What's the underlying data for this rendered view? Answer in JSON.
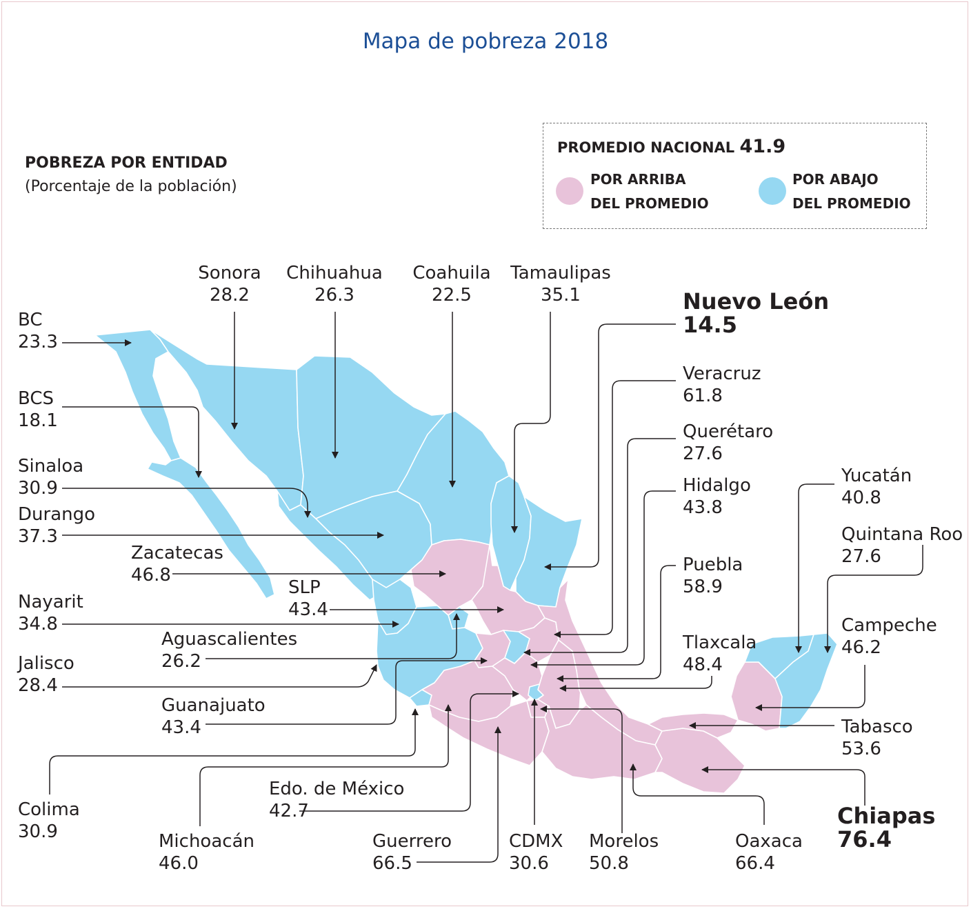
{
  "title": "Mapa de pobreza 2018",
  "subtitle": "POBREZA POR ENTIDAD",
  "note": "(Porcentaje de la población)",
  "legend": {
    "label": "PROMEDIO NACIONAL",
    "value": "41.9",
    "above_line1": "POR ARRIBA",
    "above_line2": "DEL PROMEDIO",
    "below_line1": "POR ABAJO",
    "below_line2": "DEL PROMEDIO"
  },
  "colors": {
    "above": "#e8c3da",
    "below": "#96d8f2",
    "title": "#1c4f96",
    "border": "#ffffff"
  },
  "states": {
    "bc": {
      "name": "BC",
      "value": "23.3"
    },
    "bcs": {
      "name": "BCS",
      "value": "18.1"
    },
    "sonora": {
      "name": "Sonora",
      "value": "28.2"
    },
    "chihuahua": {
      "name": "Chihuahua",
      "value": "26.3"
    },
    "coahuila": {
      "name": "Coahuila",
      "value": "22.5"
    },
    "tamaulipas": {
      "name": "Tamaulipas",
      "value": "35.1"
    },
    "nuevo_leon": {
      "name": "Nuevo León",
      "value": "14.5"
    },
    "veracruz": {
      "name": "Veracruz",
      "value": "61.8"
    },
    "queretaro": {
      "name": "Querétaro",
      "value": "27.6"
    },
    "hidalgo": {
      "name": "Hidalgo",
      "value": "43.8"
    },
    "puebla": {
      "name": "Puebla",
      "value": "58.9"
    },
    "tlaxcala": {
      "name": "Tlaxcala",
      "value": "48.4"
    },
    "yucatan": {
      "name": "Yucatán",
      "value": "40.8"
    },
    "quintana_roo": {
      "name": "Quintana Roo",
      "value": "27.6"
    },
    "campeche": {
      "name": "Campeche",
      "value": "46.2"
    },
    "tabasco": {
      "name": "Tabasco",
      "value": "53.6"
    },
    "chiapas": {
      "name": "Chiapas",
      "value": "76.4"
    },
    "oaxaca": {
      "name": "Oaxaca",
      "value": "66.4"
    },
    "morelos": {
      "name": "Morelos",
      "value": "50.8"
    },
    "cdmx": {
      "name": "CDMX",
      "value": "30.6"
    },
    "guerrero": {
      "name": "Guerrero",
      "value": "66.5"
    },
    "edomex": {
      "name": "Edo. de México",
      "value": "42.7"
    },
    "michoacan": {
      "name": "Michoacán",
      "value": "46.0"
    },
    "colima": {
      "name": "Colima",
      "value": "30.9"
    },
    "guanajuato": {
      "name": "Guanajuato",
      "value": "43.4"
    },
    "jalisco": {
      "name": "Jalisco",
      "value": "28.4"
    },
    "aguascalientes": {
      "name": "Aguascalientes",
      "value": "26.2"
    },
    "nayarit": {
      "name": "Nayarit",
      "value": "34.8"
    },
    "slp": {
      "name": "SLP",
      "value": "43.4"
    },
    "zacatecas": {
      "name": "Zacatecas",
      "value": "46.8"
    },
    "durango": {
      "name": "Durango",
      "value": "37.3"
    },
    "sinaloa": {
      "name": "Sinaloa",
      "value": "30.9"
    }
  }
}
